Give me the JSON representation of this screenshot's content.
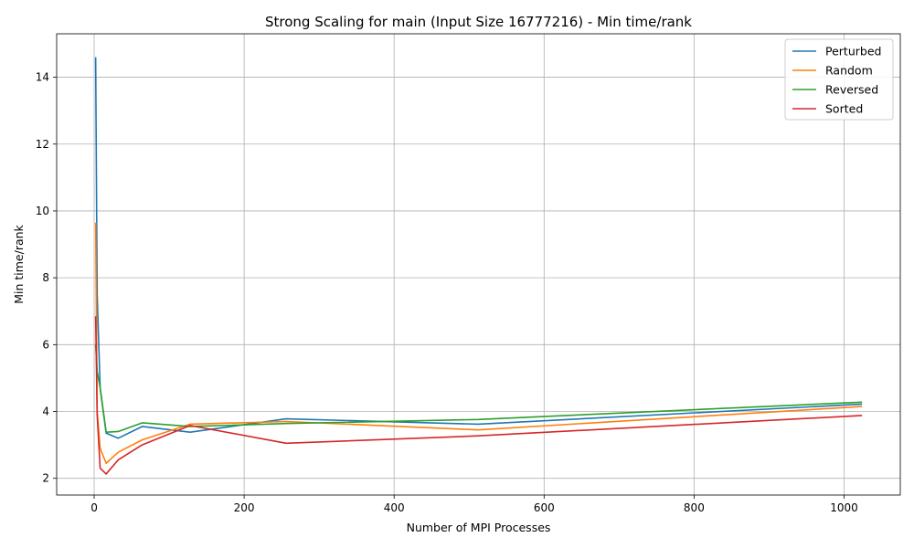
{
  "chart_data": {
    "type": "line",
    "title": "Strong Scaling for main (Input Size 16777216) - Min time/rank",
    "xlabel": "Number of MPI Processes",
    "ylabel": "Min time/rank",
    "xlim": [
      -50,
      1075
    ],
    "ylim": [
      1.5,
      15.3
    ],
    "xticks": [
      0,
      200,
      400,
      600,
      800,
      1000
    ],
    "yticks": [
      2,
      4,
      6,
      8,
      10,
      12,
      14
    ],
    "grid": true,
    "legend_position": "top-right",
    "x": [
      2,
      4,
      8,
      16,
      32,
      64,
      128,
      256,
      512,
      1024
    ],
    "series": [
      {
        "name": "Perturbed",
        "color": "#1f77b4",
        "values": [
          14.6,
          7.5,
          4.7,
          3.35,
          3.2,
          3.55,
          3.38,
          3.78,
          3.62,
          4.22
        ]
      },
      {
        "name": "Random",
        "color": "#ff7f0e",
        "values": [
          9.65,
          4.0,
          2.9,
          2.45,
          2.78,
          3.15,
          3.62,
          3.7,
          3.45,
          4.15
        ]
      },
      {
        "name": "Reversed",
        "color": "#2ca02c",
        "values": [
          6.0,
          5.2,
          4.7,
          3.38,
          3.4,
          3.66,
          3.55,
          3.64,
          3.76,
          4.28
        ]
      },
      {
        "name": "Sorted",
        "color": "#d62728",
        "values": [
          6.85,
          3.9,
          2.3,
          2.13,
          2.55,
          3.0,
          3.58,
          3.05,
          3.27,
          3.88
        ]
      }
    ]
  }
}
